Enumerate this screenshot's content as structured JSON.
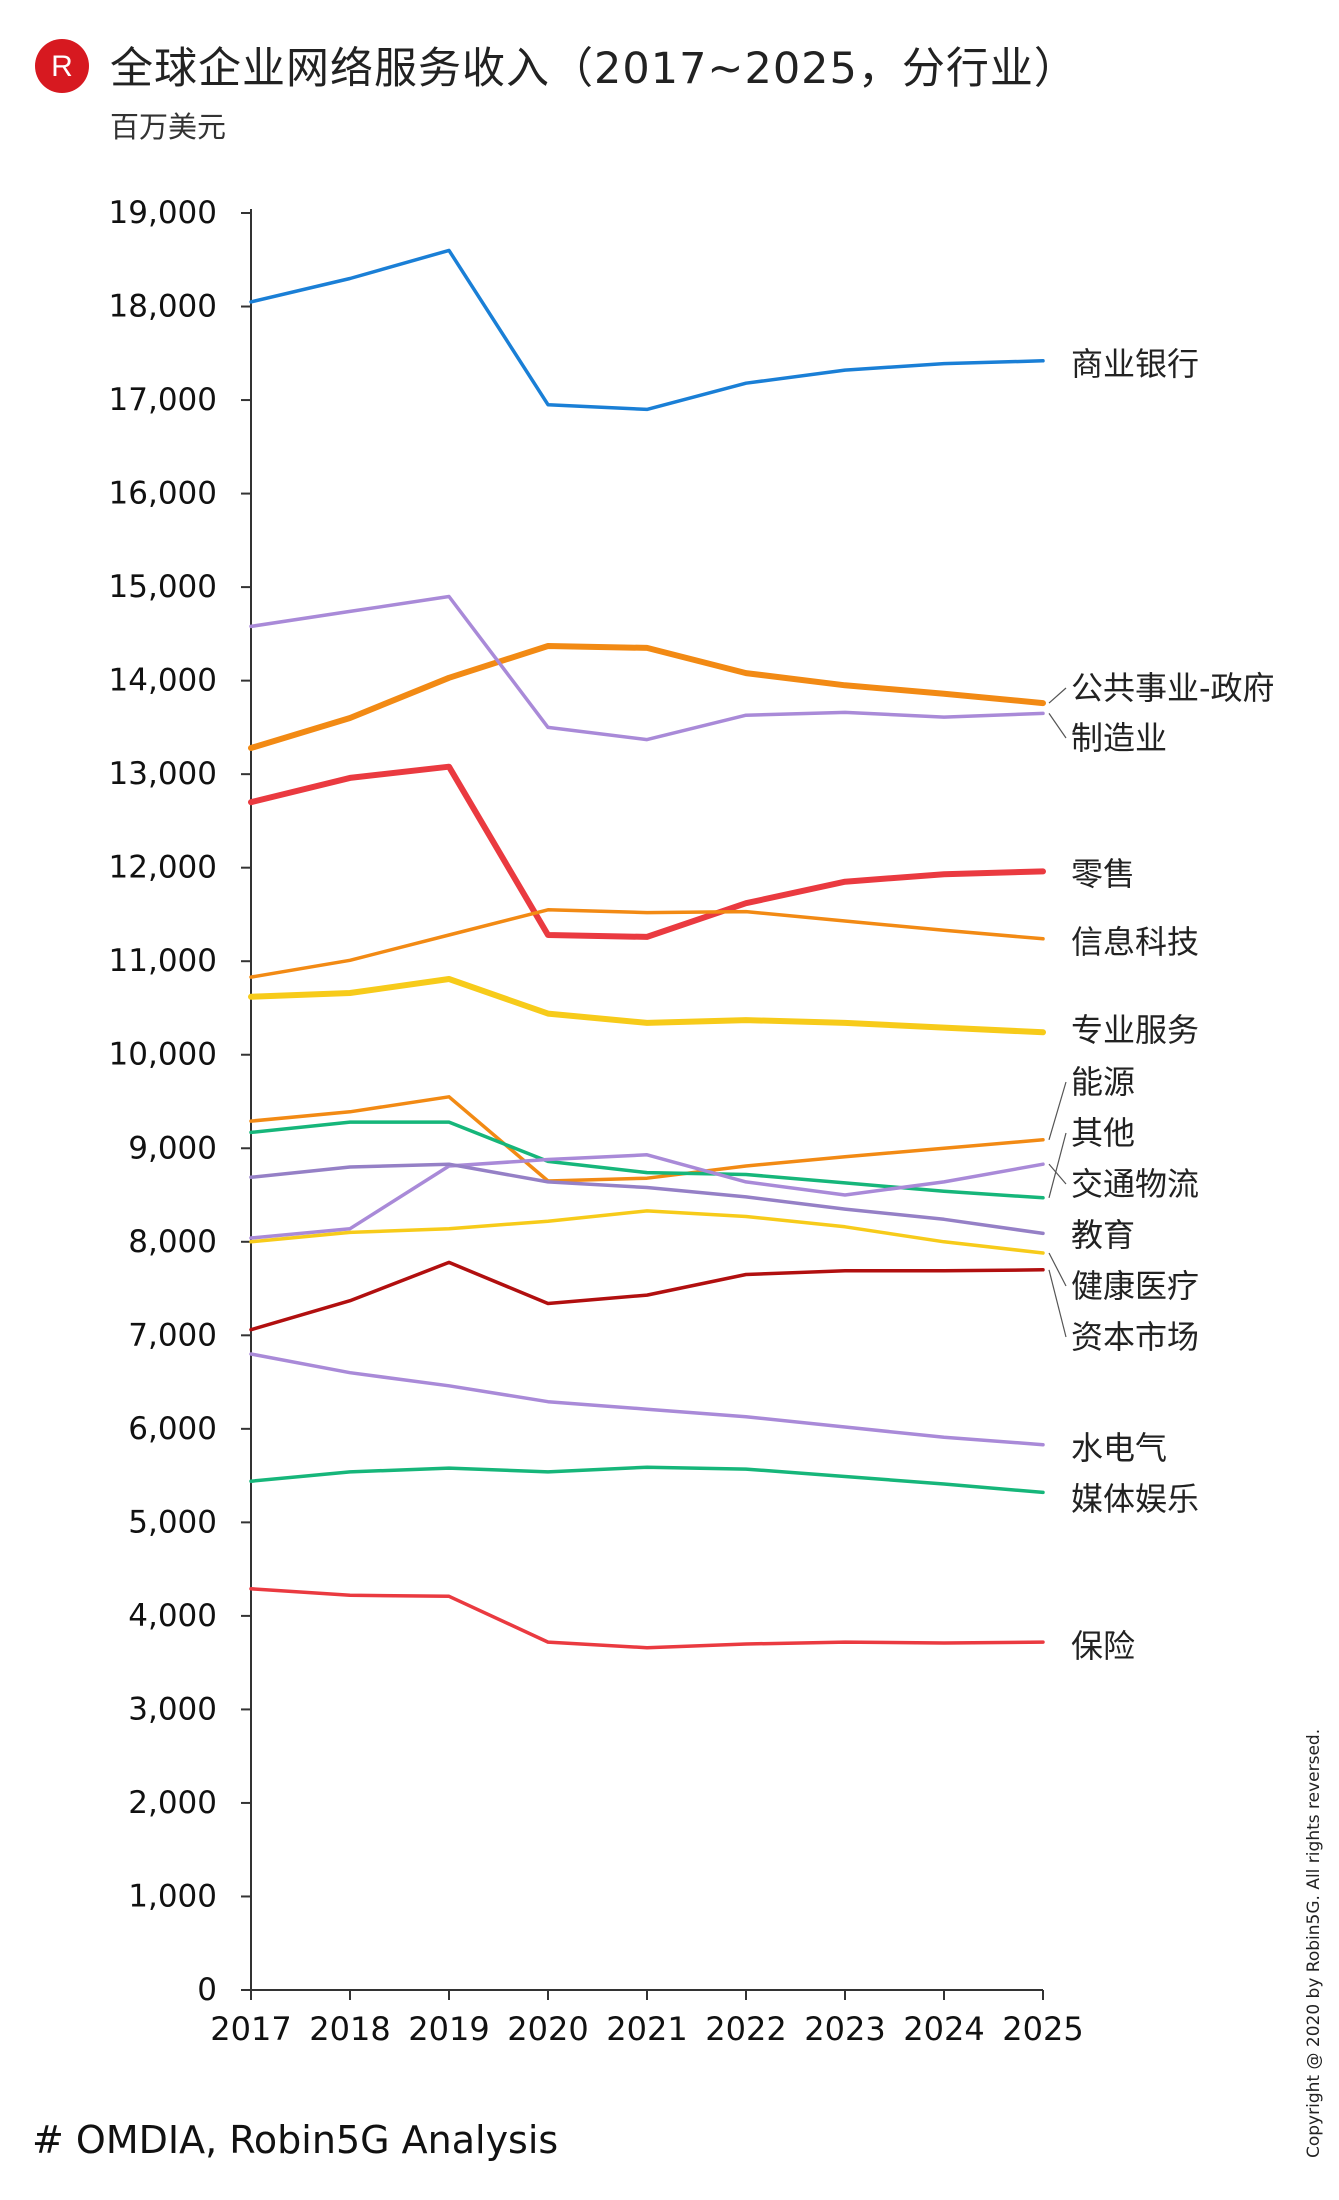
{
  "header": {
    "logo_letter": "R",
    "title": "全球企业网络服务收入（2017~2025，分行业）",
    "unit": "百万美元"
  },
  "footer": {
    "source": "# OMDIA, Robin5G Analysis",
    "copyright": "Copyright @ 2020 by Robin5G. All rights reversed."
  },
  "colors": {
    "logo_red": "#d71920"
  },
  "chart_data": {
    "type": "line",
    "title": "全球企业网络服务收入（2017~2025，分行业）",
    "ylabel": "百万美元",
    "xlabel": "",
    "ylim": [
      0,
      19000
    ],
    "y_ticks": [
      0,
      1000,
      2000,
      3000,
      4000,
      5000,
      6000,
      7000,
      8000,
      9000,
      10000,
      11000,
      12000,
      13000,
      14000,
      15000,
      16000,
      17000,
      18000,
      19000
    ],
    "y_tick_labels": [
      "0",
      "1,000",
      "2,000",
      "3,000",
      "4,000",
      "5,000",
      "6,000",
      "7,000",
      "8,000",
      "9,000",
      "10,000",
      "11,000",
      "12,000",
      "13,000",
      "14,000",
      "15,000",
      "16,000",
      "17,000",
      "18,000",
      "19,000"
    ],
    "categories": [
      "2017",
      "2018",
      "2019",
      "2020",
      "2021",
      "2022",
      "2023",
      "2024",
      "2025"
    ],
    "legend": "direct-labels-right",
    "series": [
      {
        "name": "商业银行",
        "color": "#1a7fd6",
        "width": 3.5,
        "values": [
          18050,
          18300,
          18600,
          16950,
          16900,
          17180,
          17320,
          17390,
          17420
        ]
      },
      {
        "name": "公共事业-政府",
        "color": "#f28a14",
        "width": 6,
        "values": [
          13280,
          13600,
          14030,
          14370,
          14350,
          14080,
          13950,
          13860,
          13760
        ]
      },
      {
        "name": "制造业",
        "color": "#a98ad8",
        "width": 3.5,
        "values": [
          14580,
          14740,
          14900,
          13500,
          13370,
          13630,
          13660,
          13610,
          13650
        ]
      },
      {
        "name": "零售",
        "color": "#ea3a40",
        "width": 6,
        "values": [
          12700,
          12960,
          13080,
          11280,
          11260,
          11620,
          11850,
          11930,
          11960
        ]
      },
      {
        "name": "信息科技",
        "color": "#f28a14",
        "width": 3.5,
        "values": [
          10830,
          11010,
          11280,
          11550,
          11520,
          11530,
          11430,
          11330,
          11240
        ]
      },
      {
        "name": "专业服务",
        "color": "#f7cb1a",
        "width": 6,
        "values": [
          10620,
          10660,
          10810,
          10440,
          10340,
          10370,
          10340,
          10290,
          10240
        ]
      },
      {
        "name": "能源",
        "color": "#f28a14",
        "width": 3.5,
        "values": [
          9290,
          9390,
          9550,
          8650,
          8680,
          8810,
          8910,
          9000,
          9090
        ]
      },
      {
        "name": "其他",
        "color": "#16b67a",
        "width": 3.5,
        "values": [
          9170,
          9280,
          9280,
          8860,
          8740,
          8720,
          8630,
          8540,
          8470
        ]
      },
      {
        "name": "交通物流",
        "color": "#a98ad8",
        "width": 3.5,
        "values": [
          8040,
          8140,
          8810,
          8880,
          8930,
          8640,
          8500,
          8640,
          8830
        ]
      },
      {
        "name": "教育",
        "color": "#9580c6",
        "width": 3.5,
        "values": [
          8690,
          8800,
          8830,
          8640,
          8580,
          8480,
          8350,
          8240,
          8090
        ]
      },
      {
        "name": "健康医疗",
        "color": "#f7cb1a",
        "width": 3.5,
        "values": [
          8000,
          8100,
          8140,
          8220,
          8330,
          8270,
          8160,
          8000,
          7880
        ]
      },
      {
        "name": "资本市场",
        "color": "#b10f0f",
        "width": 3.5,
        "values": [
          7060,
          7370,
          7780,
          7340,
          7430,
          7650,
          7690,
          7690,
          7700
        ]
      },
      {
        "name": "水电气",
        "color": "#a98ad8",
        "width": 3.5,
        "values": [
          6800,
          6600,
          6460,
          6290,
          6210,
          6130,
          6020,
          5910,
          5830
        ]
      },
      {
        "name": "媒体娱乐",
        "color": "#16b67a",
        "width": 3.5,
        "values": [
          5440,
          5540,
          5580,
          5540,
          5590,
          5570,
          5490,
          5410,
          5320
        ]
      },
      {
        "name": "保险",
        "color": "#ea3a40",
        "width": 3.5,
        "values": [
          4290,
          4220,
          4210,
          3720,
          3660,
          3700,
          3720,
          3710,
          3720
        ]
      }
    ]
  }
}
